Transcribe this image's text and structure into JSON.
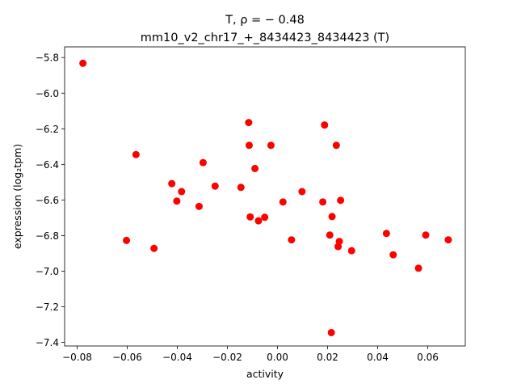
{
  "chart_data": {
    "type": "scatter",
    "title_line1": "T, ρ = − 0.48",
    "title_line2": "mm10_v2_chr17_+_8434423_8434423 (T)",
    "xlabel": "activity",
    "ylabel": "expression (log₂tpm)",
    "xlim": [
      -0.085,
      0.075
    ],
    "ylim": [
      -7.42,
      -5.74
    ],
    "xticks": [
      -0.08,
      -0.06,
      -0.04,
      -0.02,
      0.0,
      0.02,
      0.04,
      0.06
    ],
    "xtick_labels": [
      "−0.08",
      "−0.06",
      "−0.04",
      "−0.02",
      "0.00",
      "0.02",
      "0.04",
      "0.06"
    ],
    "yticks": [
      -7.4,
      -7.2,
      -7.0,
      -6.8,
      -6.6,
      -6.4,
      -6.2,
      -6.0,
      -5.8
    ],
    "ytick_labels": [
      "−7.4",
      "−7.2",
      "−7.0",
      "−6.8",
      "−6.6",
      "−6.4",
      "−6.2",
      "−6.0",
      "−5.8"
    ],
    "marker_color": "#ff0000",
    "grid": false,
    "points": [
      {
        "x": -0.0777,
        "y": -5.832
      },
      {
        "x": -0.0603,
        "y": -6.827
      },
      {
        "x": -0.0565,
        "y": -6.345
      },
      {
        "x": -0.0493,
        "y": -6.872
      },
      {
        "x": -0.0422,
        "y": -6.508
      },
      {
        "x": -0.0402,
        "y": -6.606
      },
      {
        "x": -0.0383,
        "y": -6.553
      },
      {
        "x": -0.0313,
        "y": -6.636
      },
      {
        "x": -0.0297,
        "y": -6.39
      },
      {
        "x": -0.0249,
        "y": -6.522
      },
      {
        "x": -0.0146,
        "y": -6.529
      },
      {
        "x": -0.0115,
        "y": -6.165
      },
      {
        "x": -0.0113,
        "y": -6.293
      },
      {
        "x": -0.0109,
        "y": -6.695
      },
      {
        "x": -0.009,
        "y": -6.423
      },
      {
        "x": -0.0076,
        "y": -6.717
      },
      {
        "x": -0.0051,
        "y": -6.697
      },
      {
        "x": -0.0026,
        "y": -6.293
      },
      {
        "x": 0.0022,
        "y": -6.611
      },
      {
        "x": 0.0056,
        "y": -6.824
      },
      {
        "x": 0.0098,
        "y": -6.553
      },
      {
        "x": 0.0181,
        "y": -6.611
      },
      {
        "x": 0.0188,
        "y": -6.179
      },
      {
        "x": 0.0209,
        "y": -6.797
      },
      {
        "x": 0.0215,
        "y": -7.345
      },
      {
        "x": 0.0218,
        "y": -6.693
      },
      {
        "x": 0.0235,
        "y": -6.293
      },
      {
        "x": 0.0242,
        "y": -6.862
      },
      {
        "x": 0.0247,
        "y": -6.833
      },
      {
        "x": 0.0252,
        "y": -6.602
      },
      {
        "x": 0.0296,
        "y": -6.885
      },
      {
        "x": 0.0435,
        "y": -6.788
      },
      {
        "x": 0.0462,
        "y": -6.908
      },
      {
        "x": 0.0563,
        "y": -6.983
      },
      {
        "x": 0.0592,
        "y": -6.797
      },
      {
        "x": 0.0682,
        "y": -6.824
      }
    ]
  }
}
